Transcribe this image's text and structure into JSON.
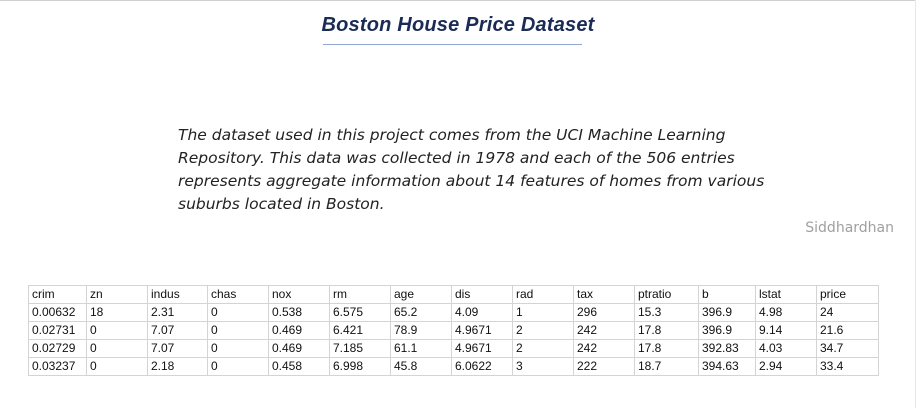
{
  "title": "Boston House Price Dataset",
  "description": "The dataset used in this project comes from the UCI Machine Learning Repository. This data was collected in 1978 and each of the 506 entries represents aggregate information about 14 features of homes from various suburbs located in Boston.",
  "author": "Siddhardhan",
  "colors": {
    "title": "#1a2b55",
    "title_underline": "#8fa6cf",
    "author": "#a0a0a0",
    "table_border": "#d4d4d4"
  },
  "table": {
    "columns": [
      "crim",
      "zn",
      "indus",
      "chas",
      "nox",
      "rm",
      "age",
      "dis",
      "rad",
      "tax",
      "ptratio",
      "b",
      "lstat",
      "price"
    ],
    "rows": [
      [
        "0.00632",
        "18",
        "2.31",
        "0",
        "0.538",
        "6.575",
        "65.2",
        "4.09",
        "1",
        "296",
        "15.3",
        "396.9",
        "4.98",
        "24"
      ],
      [
        "0.02731",
        "0",
        "7.07",
        "0",
        "0.469",
        "6.421",
        "78.9",
        "4.9671",
        "2",
        "242",
        "17.8",
        "396.9",
        "9.14",
        "21.6"
      ],
      [
        "0.02729",
        "0",
        "7.07",
        "0",
        "0.469",
        "7.185",
        "61.1",
        "4.9671",
        "2",
        "242",
        "17.8",
        "392.83",
        "4.03",
        "34.7"
      ],
      [
        "0.03237",
        "0",
        "2.18",
        "0",
        "0.458",
        "6.998",
        "45.8",
        "6.0622",
        "3",
        "222",
        "18.7",
        "394.63",
        "2.94",
        "33.4"
      ]
    ]
  }
}
